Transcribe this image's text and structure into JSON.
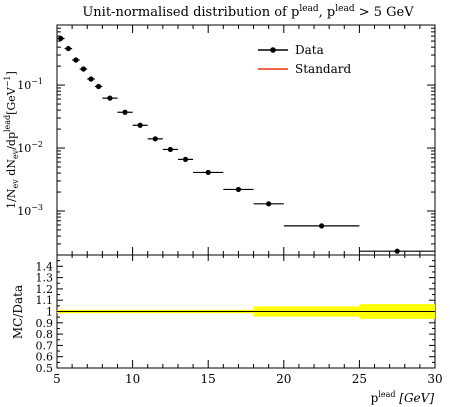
{
  "chart_data": [
    {
      "type": "scatter",
      "title_main": "Unit-normalised distribution of p",
      "title_sub": "lead",
      "title_mid": ", p",
      "title_sub2": "lead",
      "title_end": " > 5 GeV",
      "ylabel": "1/N",
      "ylabel_ev": "ev",
      "ylabel_mid": " dN",
      "ylabel_ev2": "ev",
      "ylabel_slash": "/dp",
      "ylabel_lead": "lead",
      "ylabel_unit": "[GeV",
      "ylabel_exp": "−1",
      "ylabel_close": "]",
      "yscale": "log",
      "ylim": [
        0.0002,
        0.9
      ],
      "xlim": [
        5,
        30
      ],
      "ytick_labels": [
        "10",
        "10",
        "10"
      ],
      "ytick_exps": [
        "−1",
        "−2",
        "−3"
      ],
      "ytick_values": [
        0.1,
        0.01,
        0.001
      ],
      "legend": {
        "placement": "top-right",
        "entries": [
          "Data",
          "Standard"
        ]
      },
      "series": [
        {
          "name": "Data",
          "color": "#000000",
          "x": [
            5.25,
            5.75,
            6.25,
            6.75,
            7.25,
            7.75,
            8.5,
            9.5,
            10.5,
            11.5,
            12.5,
            13.5,
            15.0,
            17.0,
            19.0,
            22.5,
            27.5
          ],
          "xerr": [
            0.25,
            0.25,
            0.25,
            0.25,
            0.25,
            0.25,
            0.5,
            0.5,
            0.5,
            0.5,
            0.5,
            0.5,
            1.0,
            1.0,
            1.0,
            2.5,
            2.5
          ],
          "y": [
            0.55,
            0.38,
            0.25,
            0.18,
            0.125,
            0.095,
            0.062,
            0.037,
            0.023,
            0.014,
            0.0095,
            0.0066,
            0.0041,
            0.0022,
            0.0013,
            0.00058,
            0.00023
          ]
        },
        {
          "name": "Standard",
          "color": "#ee3311",
          "x": [],
          "y": []
        }
      ]
    },
    {
      "type": "line",
      "ylabel": "MC/Data",
      "xlabel": "p",
      "xlabel_sub": "lead",
      "xlabel_unit": " [GeV]",
      "xlim": [
        5,
        30
      ],
      "ylim": [
        0.5,
        1.5
      ],
      "ytick_values": [
        0.5,
        0.6,
        0.7,
        0.8,
        0.9,
        1.0,
        1.1,
        1.2,
        1.3,
        1.4
      ],
      "ytick_labels": [
        "0.5",
        "0.6",
        "0.7",
        "0.8",
        "0.9",
        "1",
        "1.1",
        "1.2",
        "1.3",
        "1.4"
      ],
      "xtick_values": [
        5,
        10,
        15,
        20,
        25,
        30
      ],
      "xtick_labels": [
        "5",
        "10",
        "15",
        "20",
        "25",
        "30"
      ],
      "band_color": "#ffff00",
      "band": {
        "x": [
          5.0,
          18.0,
          18.0,
          25.0,
          25.0,
          30.0
        ],
        "lo": [
          0.985,
          0.985,
          0.955,
          0.955,
          0.935,
          0.935
        ],
        "hi": [
          1.015,
          1.015,
          1.045,
          1.045,
          1.065,
          1.065
        ]
      },
      "reference": 1.0
    }
  ]
}
